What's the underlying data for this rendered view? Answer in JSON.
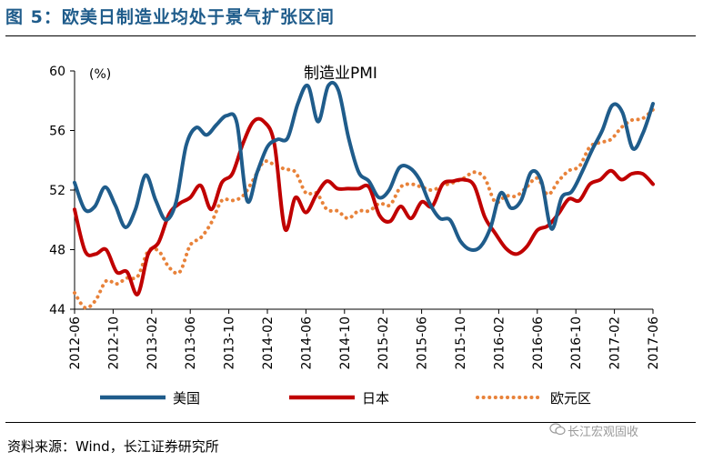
{
  "figure": {
    "title": "图 5：欧美日制造业均处于景气扩张区间",
    "source": "资料来源：Wind，长江证券研究所",
    "watermark": "长江宏观固收"
  },
  "chart_data": {
    "type": "line",
    "title": "制造业PMI",
    "ylabel": "(%)",
    "xlabel": "",
    "ylim": [
      44,
      60
    ],
    "yticks": [
      "44",
      "48",
      "52",
      "56",
      "60"
    ],
    "xtick_labels": [
      "2012-06",
      "2012-10",
      "2013-02",
      "2013-06",
      "2013-10",
      "2014-02",
      "2014-06",
      "2014-10",
      "2015-02",
      "2015-06",
      "2015-10",
      "2016-02",
      "2016-06",
      "2016-10",
      "2017-02",
      "2017-06"
    ],
    "legend_position": "bottom",
    "series": [
      {
        "name": "美国",
        "color": "#1f5c8b",
        "style": "solid",
        "values": [
          52.5,
          50.7,
          50.9,
          52.2,
          51.0,
          49.5,
          50.7,
          53.0,
          51.3,
          50.0,
          51.2,
          55.0,
          56.2,
          55.7,
          56.4,
          57.0,
          56.5,
          51.3,
          53.2,
          54.9,
          55.4,
          55.5,
          57.8,
          59.0,
          56.6,
          59.0,
          58.7,
          55.5,
          53.2,
          52.6,
          51.5,
          52.0,
          53.5,
          53.5,
          52.7,
          51.1,
          50.1,
          50.0,
          48.6,
          48.0,
          48.2,
          49.5,
          51.8,
          50.8,
          51.3,
          53.2,
          52.6,
          49.4,
          51.5,
          51.9,
          53.2,
          54.7,
          56.0,
          57.7,
          57.2,
          54.8,
          55.8,
          57.8
        ]
      },
      {
        "name": "日本",
        "color": "#c00000",
        "style": "solid",
        "values": [
          50.7,
          47.9,
          47.7,
          48.0,
          46.5,
          46.5,
          45.0,
          47.7,
          48.5,
          50.4,
          51.1,
          51.5,
          52.3,
          50.7,
          52.5,
          53.1,
          55.1,
          56.6,
          56.6,
          55.1,
          49.4,
          51.5,
          50.5,
          51.7,
          52.6,
          52.1,
          52.1,
          52.1,
          52.2,
          50.3,
          49.9,
          50.9,
          50.1,
          51.2,
          50.9,
          52.4,
          52.6,
          52.7,
          52.3,
          50.2,
          49.1,
          48.1,
          47.7,
          48.2,
          49.3,
          49.6,
          50.4,
          51.4,
          51.3,
          52.4,
          52.7,
          53.3,
          52.7,
          53.1,
          53.1,
          52.4
        ]
      },
      {
        "name": "欧元区",
        "color": "#e8823a",
        "style": "dotted",
        "values": [
          45.1,
          44.1,
          44.6,
          45.9,
          45.7,
          46.1,
          46.2,
          47.9,
          47.9,
          46.8,
          46.5,
          48.3,
          48.8,
          49.8,
          51.3,
          51.3,
          51.6,
          52.7,
          53.9,
          53.7,
          53.4,
          53.2,
          51.8,
          51.8,
          50.7,
          50.6,
          50.1,
          50.6,
          50.6,
          51.1,
          51.0,
          52.2,
          52.4,
          52.2,
          52.0,
          52.3,
          52.5,
          52.8,
          53.2,
          52.8,
          51.2,
          51.6,
          51.6,
          52.2,
          52.8,
          51.7,
          52.6,
          53.3,
          53.6,
          54.9,
          55.2,
          55.4,
          56.2,
          56.7,
          56.8,
          57.4
        ]
      }
    ]
  }
}
